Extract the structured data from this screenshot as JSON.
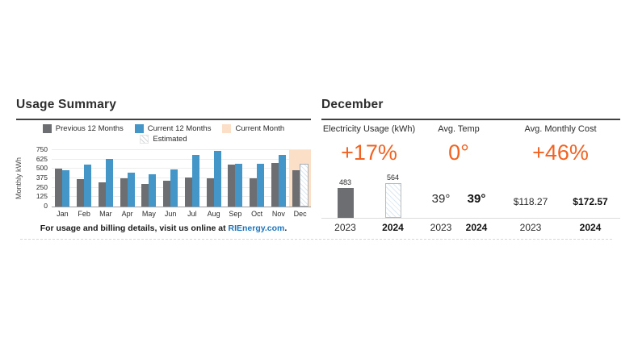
{
  "colors": {
    "accent_orange": "#f26322",
    "bar_gray": "#6d6e71",
    "bar_blue": "#4496c9",
    "current_month_peach": "#fbdfc6",
    "link_blue": "#1b75bc"
  },
  "usage_summary": {
    "title": "Usage Summary",
    "legend": [
      {
        "label": "Previous 12 Months",
        "swatch": "gray"
      },
      {
        "label": "Current 12 Months",
        "swatch": "blue"
      },
      {
        "label": "Current Month",
        "swatch": "peach"
      },
      {
        "label": "Estimated",
        "swatch": "hatch"
      }
    ],
    "footer": {
      "text": "For usage and billing details, visit us online at ",
      "link": "RIEnergy.com",
      "suffix": "."
    }
  },
  "chart_data": {
    "type": "bar",
    "title": "Usage Summary",
    "xlabel": "",
    "ylabel": "Monthly kWh",
    "ylim": [
      0,
      750
    ],
    "yticks": [
      0,
      125,
      250,
      375,
      500,
      625,
      750
    ],
    "grid": true,
    "legend_position": "top",
    "categories": [
      "Jan",
      "Feb",
      "Mar",
      "Apr",
      "May",
      "Jun",
      "Jul",
      "Aug",
      "Sep",
      "Oct",
      "Nov",
      "Dec"
    ],
    "series": [
      {
        "name": "Previous 12 Months",
        "color": "#6d6e71",
        "values": [
          500,
          365,
          320,
          375,
          300,
          340,
          390,
          370,
          555,
          375,
          580,
          483
        ]
      },
      {
        "name": "Current 12 Months",
        "color": "#4496c9",
        "values": [
          480,
          555,
          630,
          455,
          430,
          495,
          690,
          740,
          570,
          565,
          690,
          564
        ]
      }
    ],
    "current_month_index": 11,
    "estimated_bar": {
      "series_index": 1,
      "category_index": 11
    }
  },
  "december": {
    "title": "December",
    "columns": [
      {
        "header": "Electricity Usage (kWh)",
        "change": "+17%",
        "type": "bars",
        "items": [
          {
            "year": "2023",
            "value": "483",
            "kwh": 483,
            "style": "solid"
          },
          {
            "year": "2024",
            "value": "564",
            "kwh": 564,
            "style": "estimated"
          }
        ]
      },
      {
        "header": "Avg. Temp",
        "change": "0°",
        "type": "text",
        "items": [
          {
            "year": "2023",
            "value": "39°"
          },
          {
            "year": "2024",
            "value": "39°"
          }
        ]
      },
      {
        "header": "Avg. Monthly Cost",
        "change": "+46%",
        "type": "text",
        "items": [
          {
            "year": "2023",
            "value": "$118.27"
          },
          {
            "year": "2024",
            "value": "$172.57"
          }
        ]
      }
    ]
  }
}
